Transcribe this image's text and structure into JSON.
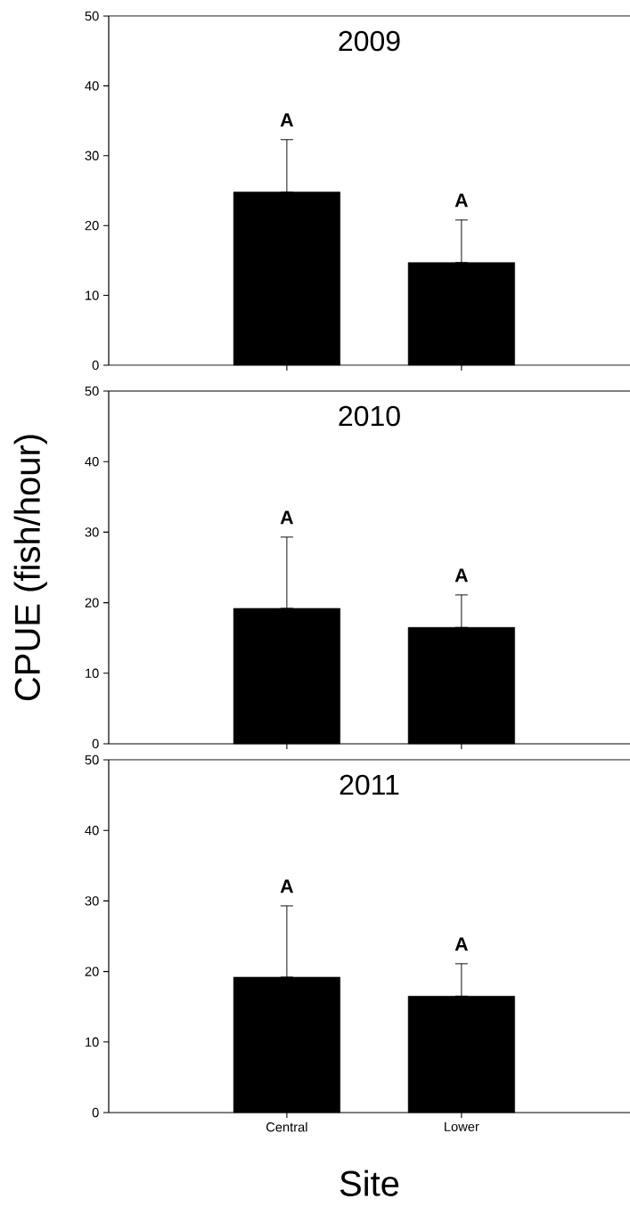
{
  "chart_data": [
    {
      "type": "bar",
      "title": "2009",
      "categories": [
        "Central",
        "Lower"
      ],
      "values": [
        24.8,
        14.7
      ],
      "errors": [
        [
          24.8,
          32.3
        ],
        [
          14.7,
          20.8
        ]
      ],
      "color": "#000000",
      "ylim": [
        0,
        50
      ],
      "yticks": [
        0,
        10,
        20,
        30,
        40,
        50
      ],
      "tick_labels": "y",
      "annotations": [
        {
          "text": "A",
          "x": "Central",
          "y": 32.3
        },
        {
          "text": "A",
          "x": "Lower",
          "y": 20.8
        }
      ]
    },
    {
      "type": "bar",
      "title": "2010",
      "ylabel": "CPUE (fish/hour)",
      "categories": [
        "Central",
        "Lower"
      ],
      "values": [
        19.2,
        16.5
      ],
      "errors": [
        [
          19.2,
          29.3
        ],
        [
          16.5,
          21.1
        ]
      ],
      "color": "#000000",
      "ylim": [
        0,
        50
      ],
      "yticks": [
        0,
        10,
        20,
        30,
        40,
        50
      ],
      "tick_labels": "y",
      "annotations": [
        {
          "text": "A",
          "x": "Central",
          "y": 29.3
        },
        {
          "text": "A",
          "x": "Lower",
          "y": 21.1
        }
      ]
    },
    {
      "type": "bar",
      "title": "2011",
      "xlabel": "Site",
      "categories": [
        "Central",
        "Lower"
      ],
      "values": [
        19.2,
        16.5
      ],
      "errors": [
        [
          19.2,
          29.3
        ],
        [
          16.5,
          21.1
        ]
      ],
      "color": "#000000",
      "ylim": [
        0,
        50
      ],
      "yticks": [
        0,
        10,
        20,
        30,
        40,
        50
      ],
      "annotations": [
        {
          "text": "A",
          "x": "Central",
          "y": 29.3
        },
        {
          "text": "A",
          "x": "Lower",
          "y": 21.1
        }
      ]
    }
  ]
}
